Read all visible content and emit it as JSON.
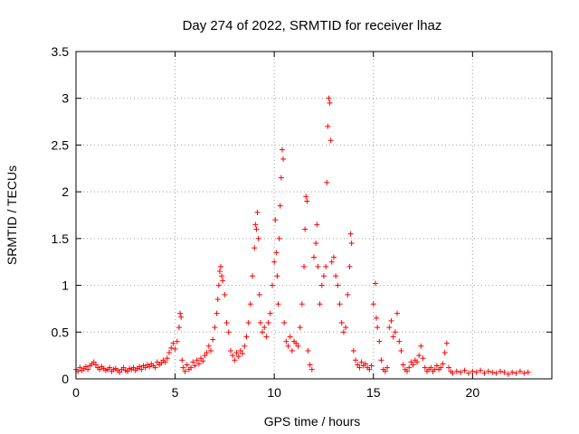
{
  "chart_data": {
    "type": "scatter",
    "title": "Day 274 of 2022, SRMTID for receiver lhaz",
    "xlabel": "GPS time / hours",
    "ylabel": "SRMTID / TECUs",
    "xlim": [
      0,
      24
    ],
    "ylim": [
      0,
      3.5
    ],
    "xticks": [
      0,
      5,
      10,
      15,
      20
    ],
    "xtick_labels": [
      "0",
      "5",
      "10",
      "15",
      "20"
    ],
    "yticks": [
      0,
      0.5,
      1,
      1.5,
      2,
      2.5,
      3,
      3.5
    ],
    "ytick_labels": [
      "0",
      "0.5",
      "1",
      "1.5",
      "2",
      "2.5",
      "3",
      "3.5"
    ],
    "grid": true,
    "marker": "+",
    "color": "#ff0000",
    "series": [
      {
        "name": "lhaz",
        "points": [
          [
            0.0,
            0.1
          ],
          [
            0.1,
            0.08
          ],
          [
            0.2,
            0.12
          ],
          [
            0.3,
            0.09
          ],
          [
            0.4,
            0.11
          ],
          [
            0.5,
            0.13
          ],
          [
            0.6,
            0.1
          ],
          [
            0.7,
            0.14
          ],
          [
            0.8,
            0.16
          ],
          [
            0.9,
            0.18
          ],
          [
            1.0,
            0.15
          ],
          [
            1.1,
            0.12
          ],
          [
            1.2,
            0.1
          ],
          [
            1.3,
            0.13
          ],
          [
            1.4,
            0.11
          ],
          [
            1.5,
            0.09
          ],
          [
            1.6,
            0.1
          ],
          [
            1.7,
            0.12
          ],
          [
            1.8,
            0.08
          ],
          [
            1.9,
            0.1
          ],
          [
            2.0,
            0.11
          ],
          [
            2.1,
            0.09
          ],
          [
            2.2,
            0.07
          ],
          [
            2.3,
            0.1
          ],
          [
            2.4,
            0.12
          ],
          [
            2.5,
            0.09
          ],
          [
            2.6,
            0.08
          ],
          [
            2.7,
            0.11
          ],
          [
            2.8,
            0.1
          ],
          [
            2.9,
            0.12
          ],
          [
            3.0,
            0.09
          ],
          [
            3.1,
            0.11
          ],
          [
            3.2,
            0.13
          ],
          [
            3.3,
            0.1
          ],
          [
            3.4,
            0.14
          ],
          [
            3.5,
            0.12
          ],
          [
            3.6,
            0.15
          ],
          [
            3.7,
            0.13
          ],
          [
            3.8,
            0.16
          ],
          [
            3.9,
            0.14
          ],
          [
            4.0,
            0.12
          ],
          [
            4.1,
            0.18
          ],
          [
            4.2,
            0.15
          ],
          [
            4.3,
            0.17
          ],
          [
            4.4,
            0.2
          ],
          [
            4.5,
            0.18
          ],
          [
            4.6,
            0.22
          ],
          [
            4.7,
            0.28
          ],
          [
            4.8,
            0.33
          ],
          [
            4.9,
            0.38
          ],
          [
            5.0,
            0.32
          ],
          [
            5.1,
            0.4
          ],
          [
            5.2,
            0.55
          ],
          [
            5.25,
            0.7
          ],
          [
            5.3,
            0.66
          ],
          [
            5.35,
            0.2
          ],
          [
            5.4,
            0.12
          ],
          [
            5.5,
            0.08
          ],
          [
            5.6,
            0.15
          ],
          [
            5.7,
            0.1
          ],
          [
            5.8,
            0.12
          ],
          [
            5.9,
            0.18
          ],
          [
            6.0,
            0.14
          ],
          [
            6.1,
            0.2
          ],
          [
            6.2,
            0.16
          ],
          [
            6.3,
            0.22
          ],
          [
            6.4,
            0.19
          ],
          [
            6.5,
            0.25
          ],
          [
            6.6,
            0.28
          ],
          [
            6.7,
            0.35
          ],
          [
            6.8,
            0.3
          ],
          [
            6.9,
            0.42
          ],
          [
            7.0,
            0.55
          ],
          [
            7.1,
            0.7
          ],
          [
            7.15,
            0.85
          ],
          [
            7.2,
            1.0
          ],
          [
            7.25,
            1.15
          ],
          [
            7.3,
            1.2
          ],
          [
            7.35,
            1.1
          ],
          [
            7.4,
            1.05
          ],
          [
            7.5,
            0.9
          ],
          [
            7.6,
            0.6
          ],
          [
            7.7,
            0.5
          ],
          [
            7.8,
            0.3
          ],
          [
            7.9,
            0.25
          ],
          [
            8.0,
            0.2
          ],
          [
            8.1,
            0.28
          ],
          [
            8.2,
            0.24
          ],
          [
            8.3,
            0.3
          ],
          [
            8.4,
            0.27
          ],
          [
            8.5,
            0.35
          ],
          [
            8.6,
            0.45
          ],
          [
            8.7,
            0.6
          ],
          [
            8.8,
            0.8
          ],
          [
            8.9,
            1.1
          ],
          [
            9.0,
            1.4
          ],
          [
            9.05,
            1.65
          ],
          [
            9.1,
            1.6
          ],
          [
            9.15,
            1.78
          ],
          [
            9.2,
            1.5
          ],
          [
            9.25,
            0.9
          ],
          [
            9.3,
            0.6
          ],
          [
            9.4,
            0.5
          ],
          [
            9.5,
            0.55
          ],
          [
            9.6,
            0.45
          ],
          [
            9.7,
            0.6
          ],
          [
            9.8,
            0.7
          ],
          [
            9.9,
            1.0
          ],
          [
            10.0,
            1.25
          ],
          [
            10.05,
            1.7
          ],
          [
            10.1,
            1.35
          ],
          [
            10.15,
            1.1
          ],
          [
            10.2,
            0.8
          ],
          [
            10.25,
            1.5
          ],
          [
            10.3,
            1.85
          ],
          [
            10.35,
            2.15
          ],
          [
            10.4,
            2.45
          ],
          [
            10.45,
            2.35
          ],
          [
            10.5,
            0.6
          ],
          [
            10.6,
            0.4
          ],
          [
            10.7,
            0.35
          ],
          [
            10.8,
            0.45
          ],
          [
            10.9,
            0.3
          ],
          [
            11.0,
            0.4
          ],
          [
            11.1,
            0.38
          ],
          [
            11.2,
            0.35
          ],
          [
            11.3,
            0.55
          ],
          [
            11.4,
            0.8
          ],
          [
            11.5,
            1.2
          ],
          [
            11.55,
            1.6
          ],
          [
            11.6,
            1.95
          ],
          [
            11.65,
            1.9
          ],
          [
            11.7,
            0.3
          ],
          [
            11.8,
            0.15
          ],
          [
            11.9,
            0.1
          ],
          [
            12.0,
            1.3
          ],
          [
            12.1,
            1.45
          ],
          [
            12.15,
            1.65
          ],
          [
            12.2,
            1.2
          ],
          [
            12.3,
            0.8
          ],
          [
            12.4,
            1.0
          ],
          [
            12.5,
            1.1
          ],
          [
            12.6,
            1.2
          ],
          [
            12.65,
            2.1
          ],
          [
            12.7,
            2.7
          ],
          [
            12.75,
            3.0
          ],
          [
            12.8,
            2.95
          ],
          [
            12.85,
            2.55
          ],
          [
            12.9,
            1.25
          ],
          [
            13.0,
            1.3
          ],
          [
            13.1,
            1.1
          ],
          [
            13.2,
            1.0
          ],
          [
            13.3,
            0.8
          ],
          [
            13.4,
            0.6
          ],
          [
            13.5,
            0.5
          ],
          [
            13.6,
            0.55
          ],
          [
            13.7,
            0.9
          ],
          [
            13.8,
            1.2
          ],
          [
            13.85,
            1.55
          ],
          [
            13.9,
            1.45
          ],
          [
            14.0,
            0.3
          ],
          [
            14.1,
            0.2
          ],
          [
            14.2,
            0.15
          ],
          [
            14.3,
            0.12
          ],
          [
            14.4,
            0.18
          ],
          [
            14.5,
            0.14
          ],
          [
            14.6,
            0.16
          ],
          [
            14.7,
            0.12
          ],
          [
            14.8,
            0.1
          ],
          [
            14.9,
            0.14
          ],
          [
            15.0,
            0.8
          ],
          [
            15.1,
            1.02
          ],
          [
            15.15,
            0.65
          ],
          [
            15.2,
            0.55
          ],
          [
            15.3,
            0.4
          ],
          [
            15.4,
            0.2
          ],
          [
            15.5,
            0.1
          ],
          [
            15.6,
            0.08
          ],
          [
            15.7,
            0.12
          ],
          [
            15.8,
            0.55
          ],
          [
            15.9,
            0.62
          ],
          [
            16.0,
            0.45
          ],
          [
            16.1,
            0.5
          ],
          [
            16.2,
            0.7
          ],
          [
            16.3,
            0.4
          ],
          [
            16.4,
            0.3
          ],
          [
            16.5,
            0.15
          ],
          [
            16.6,
            0.1
          ],
          [
            16.7,
            0.08
          ],
          [
            16.8,
            0.12
          ],
          [
            16.9,
            0.18
          ],
          [
            17.0,
            0.15
          ],
          [
            17.1,
            0.2
          ],
          [
            17.2,
            0.18
          ],
          [
            17.3,
            0.25
          ],
          [
            17.4,
            0.35
          ],
          [
            17.5,
            0.22
          ],
          [
            17.6,
            0.12
          ],
          [
            17.7,
            0.08
          ],
          [
            17.8,
            0.1
          ],
          [
            17.9,
            0.12
          ],
          [
            18.0,
            0.08
          ],
          [
            18.1,
            0.1
          ],
          [
            18.2,
            0.14
          ],
          [
            18.3,
            0.1
          ],
          [
            18.4,
            0.12
          ],
          [
            18.5,
            0.16
          ],
          [
            18.6,
            0.28
          ],
          [
            18.7,
            0.38
          ],
          [
            18.8,
            0.12
          ],
          [
            18.9,
            0.08
          ],
          [
            19.0,
            0.06
          ],
          [
            19.2,
            0.08
          ],
          [
            19.4,
            0.07
          ],
          [
            19.6,
            0.09
          ],
          [
            19.8,
            0.06
          ],
          [
            20.0,
            0.08
          ],
          [
            20.2,
            0.07
          ],
          [
            20.4,
            0.09
          ],
          [
            20.6,
            0.06
          ],
          [
            20.8,
            0.08
          ],
          [
            21.0,
            0.07
          ],
          [
            21.2,
            0.06
          ],
          [
            21.4,
            0.08
          ],
          [
            21.6,
            0.07
          ],
          [
            21.8,
            0.05
          ],
          [
            22.0,
            0.07
          ],
          [
            22.2,
            0.06
          ],
          [
            22.4,
            0.08
          ],
          [
            22.6,
            0.06
          ],
          [
            22.8,
            0.07
          ]
        ]
      }
    ]
  }
}
